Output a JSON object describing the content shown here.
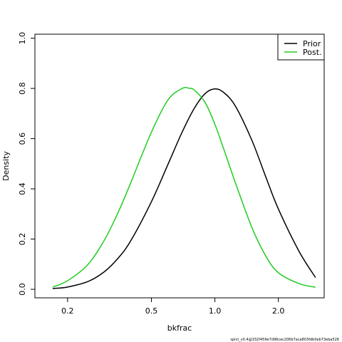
{
  "chart_data": {
    "type": "line",
    "xlabel": "bkfrac",
    "ylabel": "Density",
    "x_scale": "log",
    "xlim": [
      0.14,
      3.3
    ],
    "ylim": [
      0,
      1.05
    ],
    "x_ticks": [
      0.2,
      0.5,
      1.0,
      2.0
    ],
    "x_tick_labels": [
      "0.2",
      "0.5",
      "1.0",
      "2.0"
    ],
    "y_ticks": [
      0.0,
      0.2,
      0.4,
      0.6,
      0.8,
      1.0
    ],
    "y_tick_labels": [
      "0.0",
      "0.2",
      "0.4",
      "0.6",
      "0.8",
      "1.0"
    ],
    "grid": false,
    "legend_position": "top-right",
    "series": [
      {
        "name": "Prior",
        "color": "#000000",
        "x": [
          0.17,
          0.2,
          0.25,
          0.3,
          0.35,
          0.4,
          0.5,
          0.6,
          0.7,
          0.8,
          0.9,
          1.0,
          1.1,
          1.25,
          1.5,
          1.75,
          2.0,
          2.5,
          3.0
        ],
        "y": [
          0.003,
          0.009,
          0.031,
          0.071,
          0.127,
          0.195,
          0.349,
          0.499,
          0.627,
          0.722,
          0.78,
          0.798,
          0.784,
          0.73,
          0.592,
          0.444,
          0.32,
          0.153,
          0.047
        ]
      },
      {
        "name": "Post.",
        "color": "#22cc22",
        "x": [
          0.17,
          0.2,
          0.25,
          0.3,
          0.35,
          0.4,
          0.5,
          0.6,
          0.7,
          0.75,
          0.8,
          0.9,
          1.0,
          1.1,
          1.25,
          1.5,
          1.75,
          2.0,
          2.5,
          3.0
        ],
        "y": [
          0.009,
          0.034,
          0.099,
          0.198,
          0.312,
          0.427,
          0.626,
          0.755,
          0.8,
          0.801,
          0.793,
          0.743,
          0.657,
          0.56,
          0.425,
          0.245,
          0.13,
          0.066,
          0.023,
          0.008
        ]
      }
    ]
  },
  "footnote": "spict_v0.4@332f459e7d96cec206b7aca803fdb0eb73eba526"
}
